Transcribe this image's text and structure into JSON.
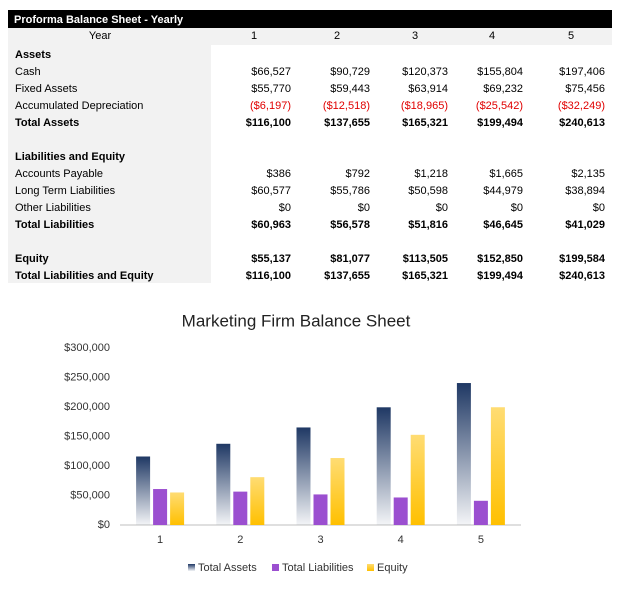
{
  "table": {
    "title": "Proforma Balance Sheet - Yearly",
    "header": [
      "Year",
      "1",
      "2",
      "3",
      "4",
      "5"
    ],
    "sections": [
      {
        "heading": "Assets",
        "rows": [
          {
            "label": "Cash",
            "values": [
              "$66,527",
              "$90,729",
              "$120,373",
              "$155,804",
              "$197,406"
            ]
          },
          {
            "label": "Fixed Assets",
            "values": [
              "$55,770",
              "$59,443",
              "$63,914",
              "$69,232",
              "$75,456"
            ]
          },
          {
            "label": "Accumulated Depreciation",
            "values": [
              "($6,197)",
              "($12,518)",
              "($18,965)",
              "($25,542)",
              "($32,249)"
            ]
          }
        ],
        "totals": [
          {
            "label": "Total Assets",
            "values": [
              "$116,100",
              "$137,655",
              "$165,321",
              "$199,494",
              "$240,613"
            ]
          }
        ]
      },
      {
        "heading": "Liabilities and Equity",
        "rows": [
          {
            "label": "Accounts Payable",
            "values": [
              "$386",
              "$792",
              "$1,218",
              "$1,665",
              "$2,135"
            ]
          },
          {
            "label": "Long Term Liabilities",
            "values": [
              "$60,577",
              "$55,786",
              "$50,598",
              "$44,979",
              "$38,894"
            ]
          },
          {
            "label": "Other Liabilities",
            "values": [
              "$0",
              "$0",
              "$0",
              "$0",
              "$0"
            ]
          }
        ],
        "totals": [
          {
            "label": "Total Liabilities",
            "values": [
              "$60,963",
              "$56,578",
              "$51,816",
              "$46,645",
              "$41,029"
            ]
          }
        ]
      },
      {
        "rows": [],
        "totals": [
          {
            "label": "Equity",
            "values": [
              "$55,137",
              "$81,077",
              "$113,505",
              "$152,850",
              "$199,584"
            ]
          },
          {
            "label": "Total Liabilities and Equity",
            "values": [
              "$116,100",
              "$137,655",
              "$165,321",
              "$199,494",
              "$240,613"
            ]
          }
        ]
      }
    ]
  },
  "chart_data": {
    "type": "bar",
    "title": "Marketing Firm Balance Sheet",
    "categories": [
      "1",
      "2",
      "3",
      "4",
      "5"
    ],
    "series": [
      {
        "name": "Total Assets",
        "color": "#1f3864",
        "values": [
          116100,
          137655,
          165321,
          199494,
          240613
        ]
      },
      {
        "name": "Total Liabilities",
        "color": "#9b4fd0",
        "values": [
          60963,
          56578,
          51816,
          46645,
          41029
        ]
      },
      {
        "name": "Equity",
        "color": "#ffc000",
        "values": [
          55137,
          81077,
          113505,
          152850,
          199584
        ]
      }
    ],
    "ylim": [
      0,
      300000
    ],
    "yticks": [
      {
        "value": 0,
        "label": "$0"
      },
      {
        "value": 50000,
        "label": "$50,000"
      },
      {
        "value": 100000,
        "label": "$100,000"
      },
      {
        "value": 150000,
        "label": "$150,000"
      },
      {
        "value": 200000,
        "label": "$200,000"
      },
      {
        "value": 250000,
        "label": "$250,000"
      },
      {
        "value": 300000,
        "label": "$300,000"
      }
    ],
    "grid": false,
    "legend": "bottom"
  }
}
